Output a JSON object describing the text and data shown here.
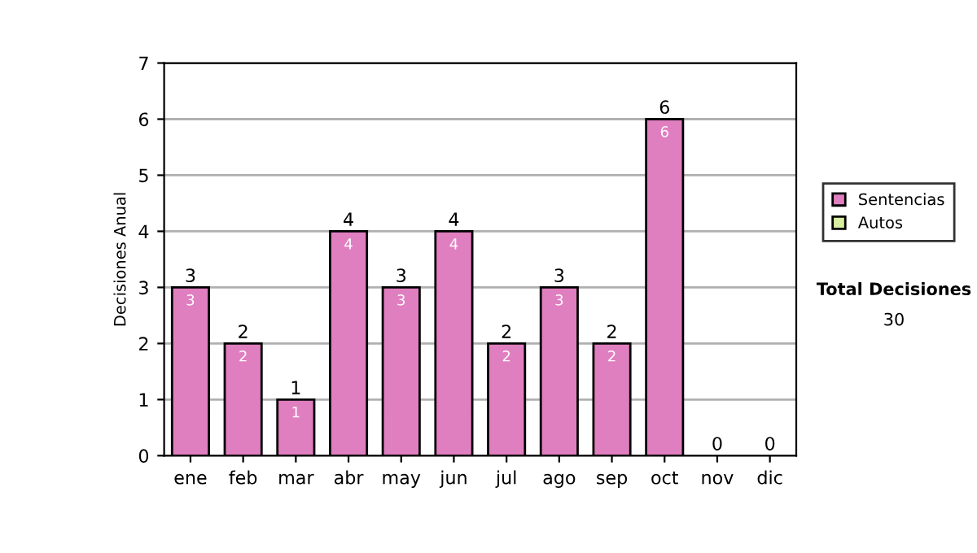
{
  "chart_data": {
    "type": "bar",
    "stacked": true,
    "ylabel": "Decisiones Anual",
    "categories": [
      "ene",
      "feb",
      "mar",
      "abr",
      "may",
      "jun",
      "jul",
      "ago",
      "sep",
      "oct",
      "nov",
      "dic"
    ],
    "series": [
      {
        "name": "Sentencias",
        "color": "#e07fc0",
        "values": [
          3,
          2,
          1,
          4,
          3,
          4,
          2,
          3,
          2,
          6,
          0,
          0
        ],
        "value_labels": [
          "3",
          "2",
          "1",
          "4",
          "3",
          "4",
          "2",
          "3",
          "2",
          "6",
          null,
          null
        ]
      },
      {
        "name": "Autos",
        "color": "#d8eea0",
        "values": [
          0,
          0,
          0,
          0,
          0,
          0,
          0,
          0,
          0,
          0,
          0,
          0
        ]
      }
    ],
    "totals": [
      "3",
      "2",
      "1",
      "4",
      "3",
      "4",
      "2",
      "3",
      "2",
      "6",
      "0",
      "0"
    ],
    "ylim": [
      0,
      7
    ],
    "yticks": [
      0,
      1,
      2,
      3,
      4,
      5,
      6,
      7
    ],
    "grid": "y",
    "legend": "right",
    "annotations": [
      "Total Decisiones",
      "30"
    ]
  }
}
